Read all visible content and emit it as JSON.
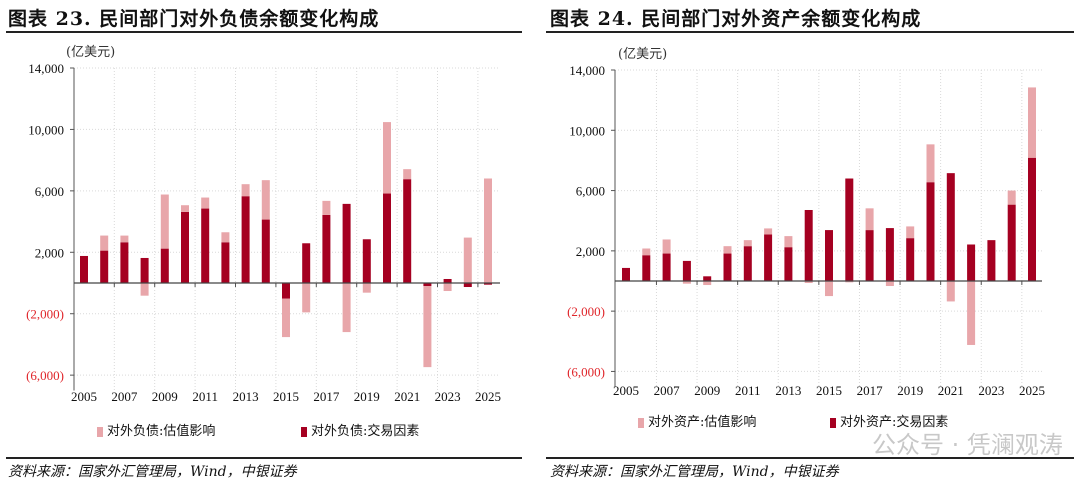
{
  "colors": {
    "transaction": "#a50021",
    "valuation": "#e8a6aa",
    "negative_label": "#e0262b",
    "grid": "#d9d9d9"
  },
  "watermark": "公众号 · 凭澜观涛",
  "chart_data": [
    {
      "type": "bar",
      "stacked": true,
      "title": "图表 23. 民间部门对外负债余额变化构成",
      "unit": "(亿美元)",
      "ylim": [
        -7000,
        14000
      ],
      "yticks": [
        14000,
        10000,
        6000,
        2000,
        -2000,
        -6000
      ],
      "ytick_labels": [
        "14,000",
        "10,000",
        "6,000",
        "2,000",
        "(2,000)",
        "(6,000)"
      ],
      "categories": [
        "2005",
        "2006",
        "2007",
        "2008",
        "2009",
        "2010",
        "2011",
        "2012",
        "2013",
        "2014",
        "2015",
        "2016",
        "2017",
        "2018",
        "2019",
        "2020",
        "2021",
        "2022",
        "2023",
        "2024",
        "2025"
      ],
      "xtick_labels": [
        "2005",
        "2007",
        "2009",
        "2011",
        "2013",
        "2015",
        "2017",
        "2019",
        "2021",
        "2023",
        "2025"
      ],
      "grid": true,
      "legend_position": "bottom",
      "series": [
        {
          "name": "对外负债:估值影响",
          "color_key": "valuation",
          "values": [
            0,
            980,
            435,
            -826,
            3522,
            434,
            717,
            652,
            783,
            2565,
            -2500,
            -1913,
            913,
            -3196,
            -630,
            4652,
            652,
            -5282,
            -522,
            2957,
            6805
          ]
        },
        {
          "name": "对外负债:交易因素",
          "color_key": "transaction",
          "values": [
            1760,
            2109,
            2652,
            1630,
            2239,
            4631,
            4848,
            2652,
            5652,
            4131,
            -1022,
            2587,
            4435,
            5152,
            2848,
            5826,
            6761,
            -196,
            261,
            -261,
            -109
          ]
        }
      ],
      "source": "资料来源：国家外汇管理局，Wind，中银证券"
    },
    {
      "type": "bar",
      "stacked": true,
      "title": "图表 24. 民间部门对外资产余额变化构成",
      "unit": "(亿美元)",
      "ylim": [
        -7000,
        14000
      ],
      "yticks": [
        14000,
        10000,
        6000,
        2000,
        -2000,
        -6000
      ],
      "ytick_labels": [
        "14,000",
        "10,000",
        "6,000",
        "2,000",
        "(2,000)",
        "(6,000)"
      ],
      "categories": [
        "2005",
        "2006",
        "2007",
        "2008",
        "2009",
        "2010",
        "2011",
        "2012",
        "2013",
        "2014",
        "2015",
        "2016",
        "2017",
        "2018",
        "2019",
        "2020",
        "2021",
        "2022",
        "2023",
        "2024",
        "2025"
      ],
      "xtick_labels": [
        "2005",
        "2007",
        "2009",
        "2011",
        "2013",
        "2015",
        "2017",
        "2019",
        "2021",
        "2023",
        "2025"
      ],
      "grid": true,
      "legend_position": "bottom",
      "series": [
        {
          "name": "对外资产:估值影响",
          "color_key": "valuation",
          "values": [
            0,
            445,
            934,
            -178,
            -267,
            489,
            400,
            400,
            734,
            -133,
            -1000,
            -89,
            1444,
            -333,
            778,
            2511,
            -1356,
            -4244,
            0,
            933,
            4666
          ]
        },
        {
          "name": "对外资产:交易因素",
          "color_key": "transaction",
          "values": [
            867,
            1711,
            1822,
            1333,
            311,
            1822,
            2311,
            3089,
            2244,
            4711,
            3378,
            6800,
            3378,
            3511,
            2844,
            6556,
            7156,
            2422,
            2711,
            5067,
            8178
          ]
        }
      ],
      "source": "资料来源：国家外汇管理局，Wind，中银证券"
    }
  ]
}
